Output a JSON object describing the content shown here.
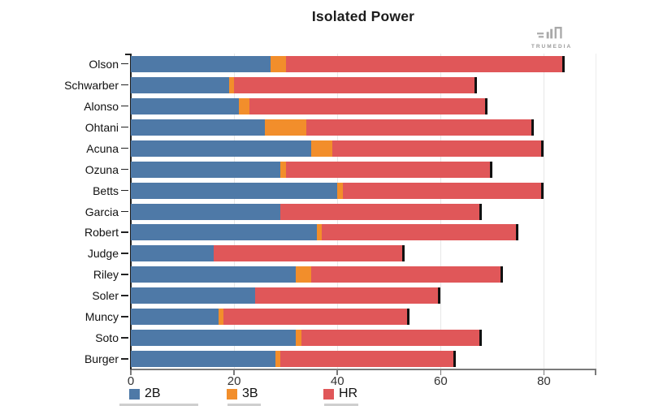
{
  "header": {
    "title": "Isolated Power"
  },
  "branding": {
    "logo_text": "TRUMEDIA",
    "logo_icon": "trumedia-bars-icon"
  },
  "chart_data": {
    "type": "bar",
    "orientation": "horizontal",
    "stacked": true,
    "title": "Isolated Power",
    "categories": [
      "Olson",
      "Schwarber",
      "Alonso",
      "Ohtani",
      "Acuna",
      "Ozuna",
      "Betts",
      "Garcia",
      "Robert",
      "Judge",
      "Riley",
      "Soler",
      "Muncy",
      "Soto",
      "Burger"
    ],
    "series": [
      {
        "name": "2B",
        "color": "#4e79a7",
        "values": [
          27,
          19,
          21,
          26,
          35,
          29,
          40,
          29,
          36,
          16,
          32,
          24,
          17,
          32,
          28
        ]
      },
      {
        "name": "3B",
        "color": "#f28e2b",
        "values": [
          3,
          1,
          2,
          8,
          4,
          1,
          1,
          0,
          1,
          0,
          3,
          0,
          1,
          1,
          1
        ]
      },
      {
        "name": "HR",
        "color": "#e05759",
        "values": [
          54,
          47,
          46,
          44,
          41,
          40,
          39,
          39,
          38,
          37,
          37,
          36,
          36,
          35,
          34
        ]
      }
    ],
    "totals": [
      84,
      67,
      69,
      78,
      80,
      70,
      80,
      68,
      75,
      53,
      72,
      60,
      54,
      68,
      63
    ],
    "xlabel": "",
    "ylabel": "",
    "xlim": [
      0,
      90
    ],
    "xticks": [
      0,
      20,
      40,
      60,
      80
    ],
    "grid": "vertical",
    "legend_position": "bottom",
    "bar_endcap_color": "#111111"
  }
}
